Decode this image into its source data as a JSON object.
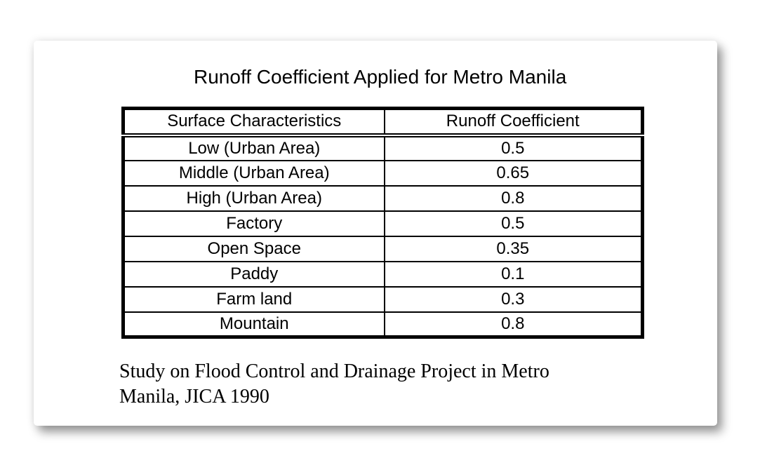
{
  "document": {
    "title": "Runoff Coefficient Applied for Metro Manila",
    "table": {
      "headers": [
        "Surface Characteristics",
        "Runoff Coefficient"
      ],
      "rows": [
        {
          "surface": "Low (Urban Area)",
          "coefficient": "0.5"
        },
        {
          "surface": "Middle (Urban Area)",
          "coefficient": "0.65"
        },
        {
          "surface": "High (Urban Area)",
          "coefficient": "0.8"
        },
        {
          "surface": "Factory",
          "coefficient": "0.5"
        },
        {
          "surface": "Open Space",
          "coefficient": "0.35"
        },
        {
          "surface": "Paddy",
          "coefficient": "0.1"
        },
        {
          "surface": "Farm land",
          "coefficient": "0.3"
        },
        {
          "surface": "Mountain",
          "coefficient": "0.8"
        }
      ]
    },
    "source_note_lines": [
      "Study on Flood Control and Drainage Project in Metro",
      "Manila, JICA 1990"
    ]
  },
  "chart_data": {
    "type": "table",
    "title": "Runoff Coefficient Applied for Metro Manila",
    "columns": [
      "Surface Characteristics",
      "Runoff Coefficient"
    ],
    "categories": [
      "Low (Urban Area)",
      "Middle (Urban Area)",
      "High (Urban Area)",
      "Factory",
      "Open Space",
      "Paddy",
      "Farm land",
      "Mountain"
    ],
    "values": [
      0.5,
      0.65,
      0.8,
      0.5,
      0.35,
      0.1,
      0.3,
      0.8
    ],
    "source": "Study on Flood Control and Drainage Project in Metro Manila, JICA 1990"
  },
  "colors": {
    "page_background": "#ffffff",
    "card_background": "#ffffff",
    "text": "#000000",
    "table_border": "#000000",
    "shadow": "rgba(0,0,0,0.40)"
  }
}
